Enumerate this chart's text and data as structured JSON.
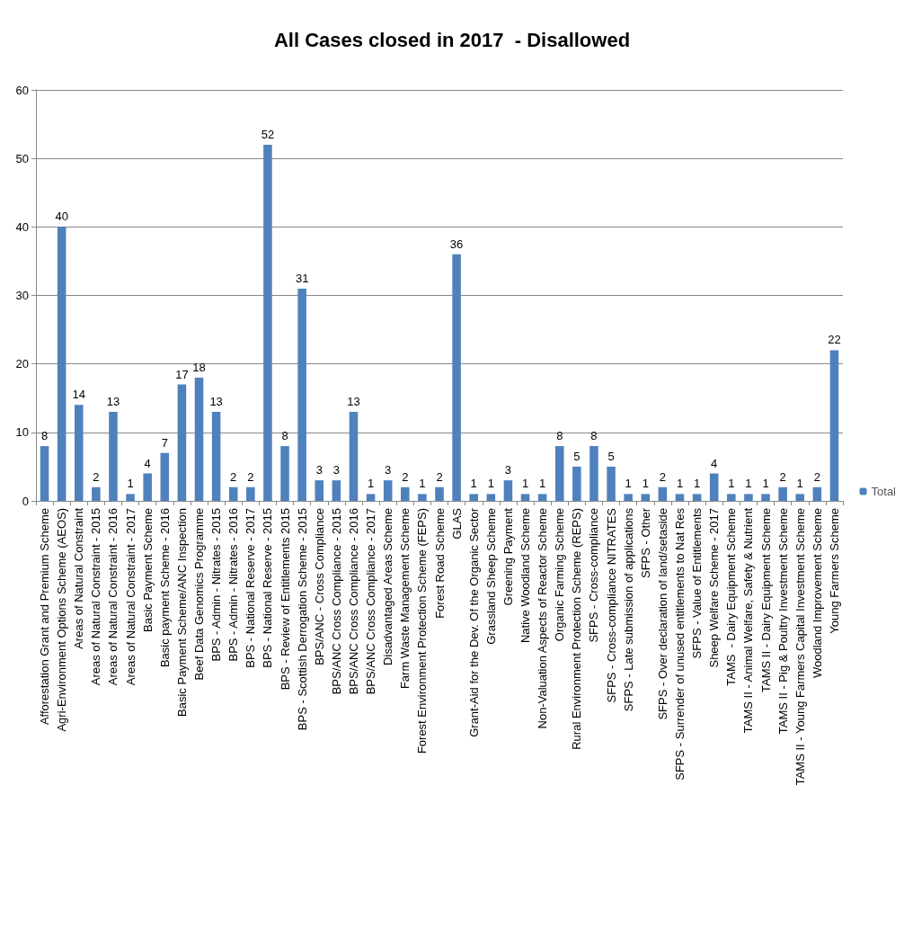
{
  "chart_data": {
    "type": "bar",
    "title": "All Cases closed in 2017  - Disallowed",
    "categories": [
      "Afforestation Grant and Premium Scheme",
      "Agri-Environment Options Scheme (AEOS)",
      "Areas of Natural Constraint",
      "Areas of Natural Constraint - 2015",
      "Areas of Natural Constraint - 2016",
      "Areas of Natural Constraint - 2017",
      "Basic Payment Scheme",
      "Basic payment Scheme - 2016",
      "Basic Payment Scheme/ANC Inspection",
      "Beef Data Genomics Programme",
      "BPS - Admin - Nitrates - 2015",
      "BPS - Admin - Nitrates - 2016",
      "BPS - National Reserve - 2017",
      "BPS - National Reserve - 2015",
      "BPS - Review of Entitlements 2015",
      "BPS - Scottish Derrogation Scheme - 2015",
      "BPS/ANC - Cross Compliance",
      "BPS/ANC Cross Compliance - 2015",
      "BPS/ANC Cross Compliance - 2016",
      "BPS/ANC Cross Compliance - 2017",
      "Disadvantaged Areas Scheme",
      "Farm Waste Management Scheme",
      "Forest Environment Protection Scheme (FEPS)",
      "Forest Road Scheme",
      "GLAS",
      "Grant-Aid for the Dev. Of the Organic Sector",
      "Grassland Sheep Scheme",
      "Greening Payment",
      "Native Woodland Scheme",
      "Non-Valuation Aspects of Reactor Scheme",
      "Organic Farming Scheme",
      "Rural Environment Protection Scheme (REPS)",
      "SFPS - Cross-compliance",
      "SFPS - Cross-compliance NITRATES",
      "SFPS - Late submission of applications",
      "SFPS - Other",
      "SFPS - Over declaration of land/setaside",
      "SFPS - Surrender of unused entitlements to Nat Res",
      "SFPS - Value of Entitlements",
      "Sheep Welfare Scheme - 2017",
      "TAMS  - Dairy Equipment Scheme",
      "TAMS II - Animal Welfare, Safety & Nutrient",
      "TAMS II - Dairy Equipment Scheme",
      "TAMS II - Pig & Poultry Investment Scheme",
      "TAMS II - Young Farmers Capital Investment Scheme",
      "Woodland Improvement Scheme",
      "Young Farmers Scheme"
    ],
    "series": [
      {
        "name": "Total",
        "color": "#4f81bd",
        "values": [
          8,
          40,
          14,
          2,
          13,
          1,
          4,
          7,
          17,
          18,
          13,
          2,
          2,
          52,
          8,
          31,
          3,
          3,
          13,
          1,
          3,
          2,
          1,
          2,
          36,
          1,
          1,
          3,
          1,
          1,
          8,
          5,
          8,
          5,
          1,
          1,
          2,
          1,
          1,
          4,
          1,
          1,
          1,
          2,
          1,
          2,
          22
        ]
      }
    ],
    "ylim": [
      0,
      60
    ],
    "yticks": [
      0,
      10,
      20,
      30,
      40,
      50,
      60
    ],
    "grid": "y",
    "legend": "right",
    "data_labels": true
  }
}
